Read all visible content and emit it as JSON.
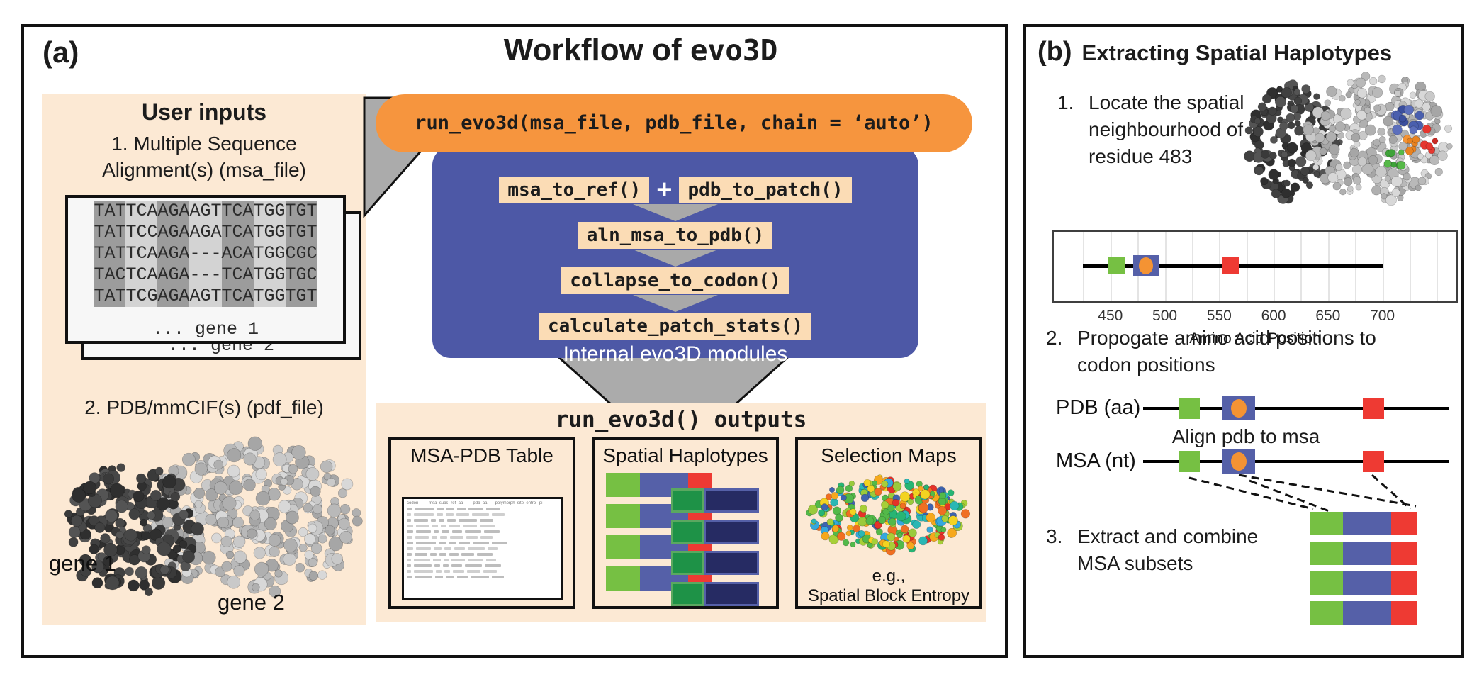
{
  "panel_a": {
    "label": "(a)",
    "title_prefix": "Workflow of ",
    "title_code": "evo3D",
    "user_inputs": {
      "title": "User inputs",
      "item1_line1": "1. Multiple Sequence",
      "item1_line2": "Alignment(s) (msa_file)",
      "msa_sequences": [
        "TATTCAAGAAGTTCATGGTGT",
        "TATTCCAGAAGATCATGGTGT",
        "TATTCAAGA---ACATGGCGC",
        "TACTCAAGA---TCATGGTGC",
        "TATTCGAGAAGTTCATGGTGT"
      ],
      "gene1_row": "... gene 1",
      "gene2_row": "... gene 2",
      "item2": "2. PDB/mmCIF(s) (pdf_file)",
      "gene1_label": "gene 1",
      "gene2_label": "gene 2"
    },
    "pipeline": {
      "run_call": "run_evo3d(msa_file, pdb_file, chain = ‘auto’)",
      "module_msa_to_ref": "msa_to_ref()",
      "plus": "+",
      "module_pdb_to_patch": "pdb_to_patch()",
      "module_aln": "aln_msa_to_pdb()",
      "module_collapse": "collapse_to_codon()",
      "module_calc": "calculate_patch_stats()",
      "internal_label": "Internal evo3D modules"
    },
    "outputs": {
      "title_code": "run_evo3d()",
      "title_rest": " outputs",
      "box1_title": "MSA-PDB Table",
      "box2_title": "Spatial Haplotypes",
      "box3_title": "Selection Maps",
      "box3_caption1": "e.g.,",
      "box3_caption2": "Spatial Block Entropy",
      "table_headers": [
        "codon",
        "msa_subset_id",
        "ref_aa",
        "pdb_aa",
        "polymorphic",
        "site_entropy",
        "pi"
      ]
    }
  },
  "panel_b": {
    "label": "(b)",
    "title": "Extracting Spatial Haplotypes",
    "step1_num": "1.",
    "step1_line1": "Locate the spatial",
    "step1_line2": "neighbourhood of",
    "step1_line3": "residue 483",
    "step2_num": "2.",
    "step2_line1": "Propogate amino acid positions to",
    "step2_line2": "codon positions",
    "track_pdb_label": "PDB (aa)",
    "align_label": "Align pdb to msa",
    "track_msa_label": "MSA (nt)",
    "step3_num": "3.",
    "step3_line1": "Extract and combine",
    "step3_line2": "MSA subsets"
  },
  "chart_data": {
    "type": "scatter",
    "xlabel": "Amino Acid Position",
    "xlim": [
      398,
      768
    ],
    "ticks": [
      450,
      500,
      550,
      600,
      650,
      700
    ],
    "line_extent": [
      425,
      700
    ],
    "grid_step": 25,
    "markers": [
      {
        "shape": "green-square",
        "value": 455,
        "color": "#76C043"
      },
      {
        "shape": "blue-square-orange-dot",
        "value": 483,
        "color": "#5560A8",
        "dot_color": "#F49333"
      },
      {
        "shape": "red-square",
        "value": 560,
        "color": "#EE3A33"
      }
    ]
  },
  "colors": {
    "green": "#76C043",
    "slate": "#5560A8",
    "red": "#EE3A33",
    "orangec": "#F49333",
    "navy": "#262B63",
    "dgreen": "#1E9247",
    "orange": "#F6953E",
    "blue": "#4D58A6",
    "peach": "#FCE9D4",
    "mpeach": "#FBDCB5",
    "gray": "#ABABAB"
  }
}
